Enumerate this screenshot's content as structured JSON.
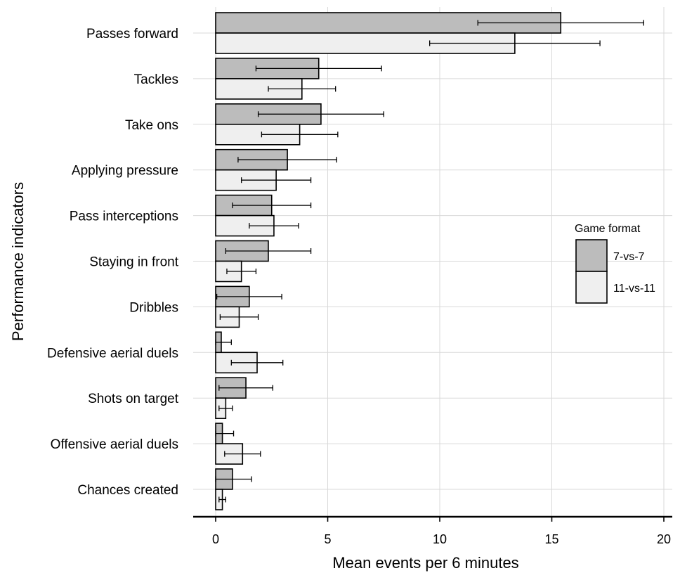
{
  "chart_data": {
    "type": "bar",
    "orientation": "horizontal",
    "categories": [
      "Passes forward",
      "Tackles",
      "Take ons",
      "Applying pressure",
      "Pass interceptions",
      "Staying in front",
      "Dribbles",
      "Defensive aerial duels",
      "Shots on target",
      "Offensive aerial duels",
      "Chances created"
    ],
    "series": [
      {
        "name": "7-vs-7",
        "color": "#bcbcbc",
        "values": [
          15.4,
          4.6,
          4.7,
          3.2,
          2.5,
          2.35,
          1.5,
          0.25,
          1.35,
          0.3,
          0.75
        ],
        "error": [
          3.7,
          2.8,
          2.8,
          2.2,
          1.75,
          1.9,
          1.45,
          0.45,
          1.2,
          0.5,
          0.85
        ]
      },
      {
        "name": "11-vs-11",
        "color": "#efefef",
        "values": [
          13.35,
          3.85,
          3.75,
          2.7,
          2.6,
          1.15,
          1.05,
          1.85,
          0.45,
          1.2,
          0.3
        ],
        "error": [
          3.8,
          1.5,
          1.7,
          1.55,
          1.1,
          0.65,
          0.85,
          1.15,
          0.3,
          0.8,
          0.15
        ]
      }
    ],
    "xlabel": "Mean events per 6 minutes",
    "ylabel": "Performance indicators",
    "xlim": [
      0,
      20
    ],
    "xticks": [
      0,
      5,
      10,
      15,
      20
    ],
    "grid": true,
    "legend": {
      "title": "Game format",
      "placement": "right"
    }
  }
}
